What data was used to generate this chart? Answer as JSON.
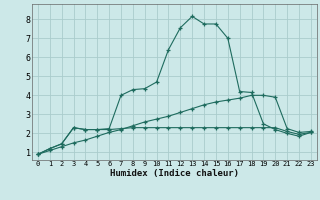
{
  "xlabel": "Humidex (Indice chaleur)",
  "bg_color": "#cce8e8",
  "grid_color": "#aacccc",
  "line_color": "#1e6b5e",
  "xlim": [
    -0.5,
    23.5
  ],
  "ylim": [
    0.6,
    8.8
  ],
  "xticks": [
    0,
    1,
    2,
    3,
    4,
    5,
    6,
    7,
    8,
    9,
    10,
    11,
    12,
    13,
    14,
    15,
    16,
    17,
    18,
    19,
    20,
    21,
    22,
    23
  ],
  "yticks": [
    1,
    2,
    3,
    4,
    5,
    6,
    7,
    8
  ],
  "line1_x": [
    0,
    1,
    2,
    3,
    4,
    5,
    6,
    7,
    8,
    9,
    10,
    11,
    12,
    13,
    14,
    15,
    16,
    17,
    18,
    19,
    20,
    21,
    22,
    23
  ],
  "line1_y": [
    0.9,
    1.2,
    1.45,
    2.3,
    2.2,
    2.2,
    2.2,
    2.25,
    2.3,
    2.3,
    2.3,
    2.3,
    2.3,
    2.3,
    2.3,
    2.3,
    2.3,
    2.3,
    2.3,
    2.3,
    2.3,
    2.1,
    1.95,
    2.05
  ],
  "line2_x": [
    0,
    1,
    2,
    3,
    4,
    5,
    6,
    7,
    8,
    9,
    10,
    11,
    12,
    13,
    14,
    15,
    16,
    17,
    18,
    19,
    20,
    21,
    22,
    23
  ],
  "line2_y": [
    0.9,
    1.2,
    1.45,
    2.3,
    2.2,
    2.2,
    2.25,
    4.0,
    4.3,
    4.35,
    4.7,
    6.4,
    7.55,
    8.15,
    7.75,
    7.75,
    7.0,
    4.2,
    4.15,
    2.5,
    2.2,
    2.0,
    1.85,
    2.05
  ],
  "line3_x": [
    0,
    1,
    2,
    3,
    4,
    5,
    6,
    7,
    8,
    9,
    10,
    11,
    12,
    13,
    14,
    15,
    16,
    17,
    18,
    19,
    20,
    21,
    22,
    23
  ],
  "line3_y": [
    0.9,
    1.1,
    1.3,
    1.5,
    1.65,
    1.85,
    2.05,
    2.2,
    2.4,
    2.6,
    2.75,
    2.9,
    3.1,
    3.3,
    3.5,
    3.65,
    3.75,
    3.85,
    4.0,
    4.0,
    3.9,
    2.25,
    2.05,
    2.1
  ]
}
